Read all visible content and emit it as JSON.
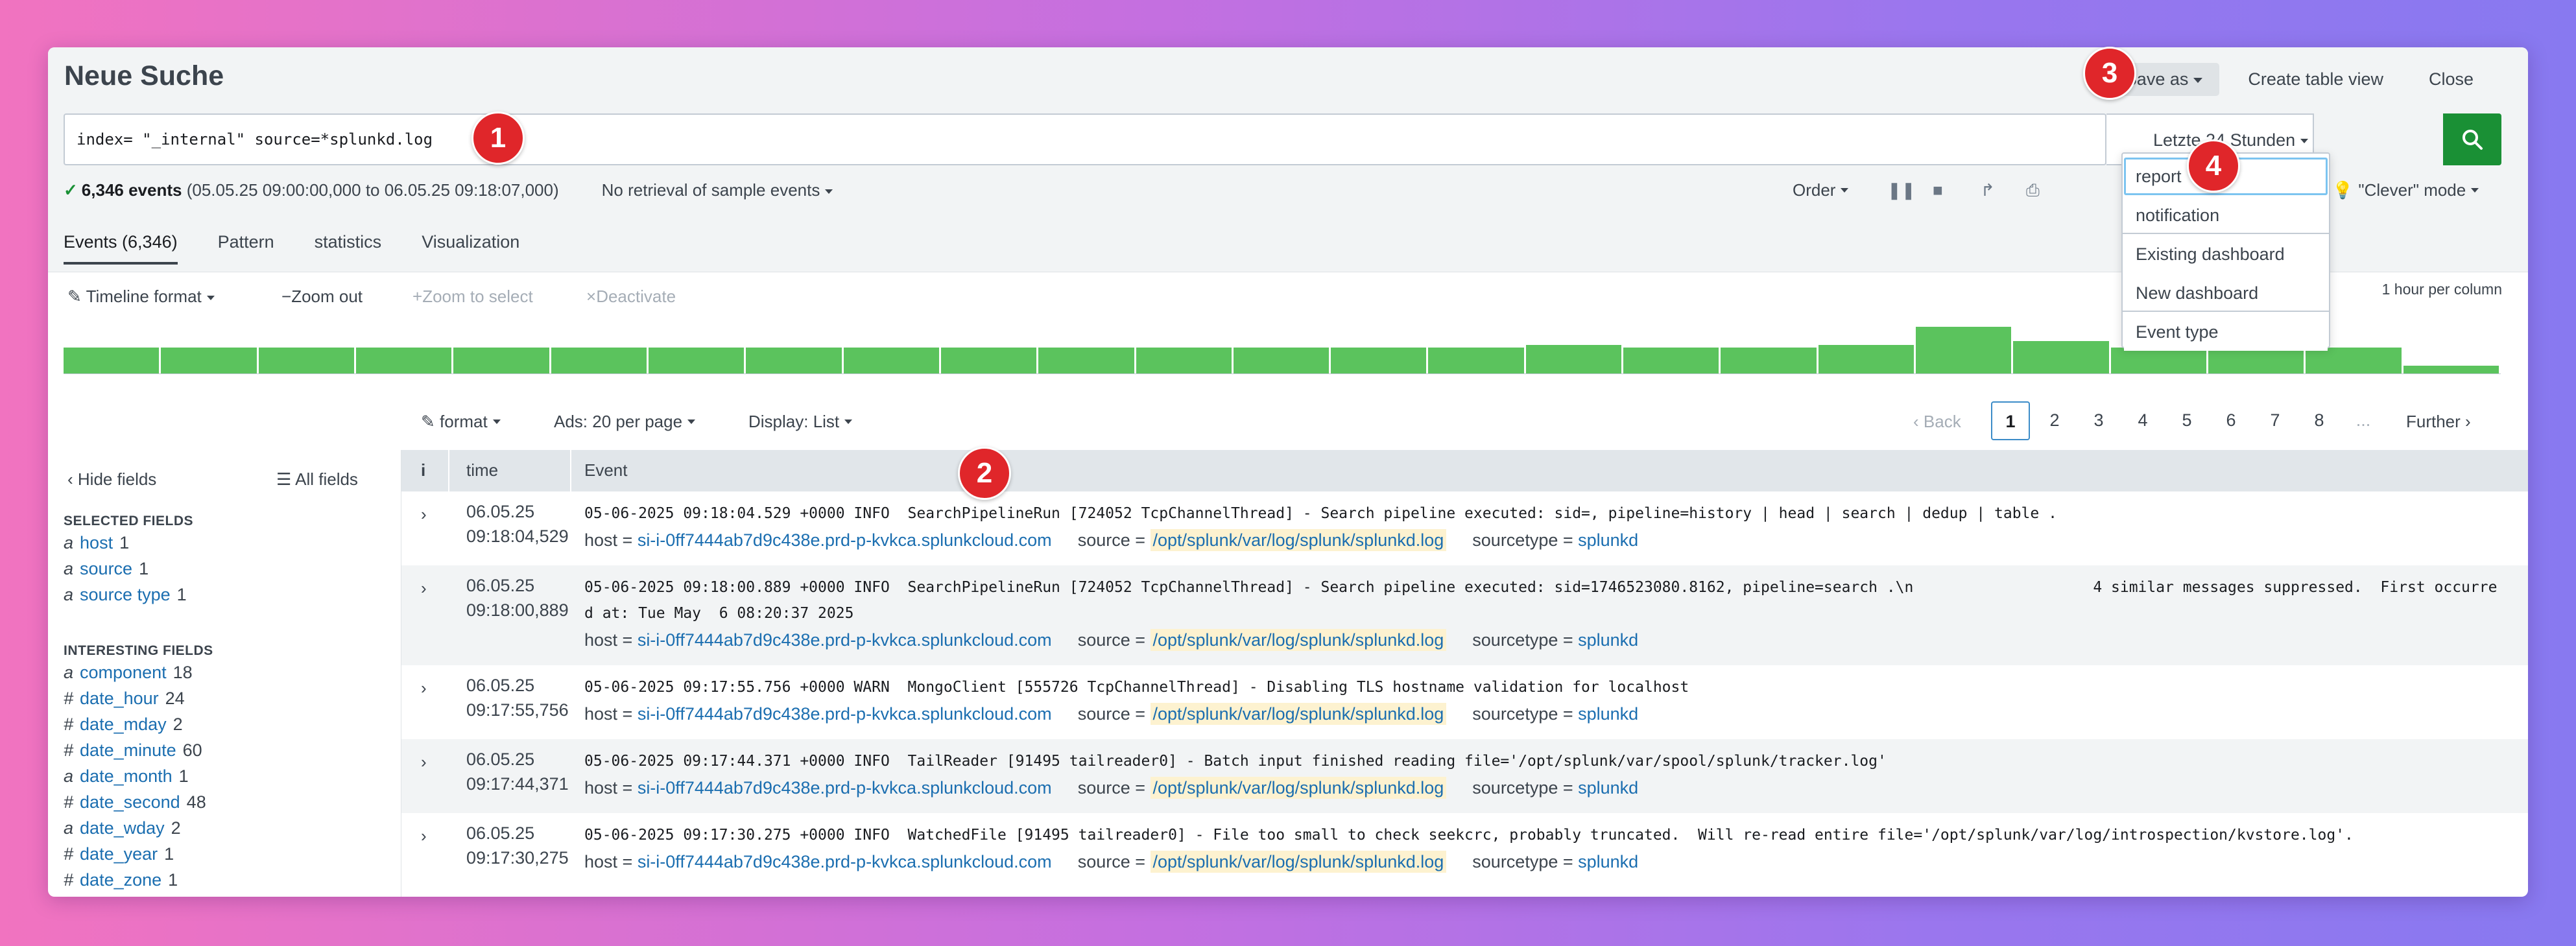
{
  "page": {
    "title": "Neue Suche",
    "actions": {
      "save_as": "Save as",
      "create_table_view": "Create table view",
      "close": "Close"
    }
  },
  "search": {
    "query": "index= \"_internal\" source=*splunkd.log",
    "time_range": "Letzte 24 Stunden"
  },
  "status": {
    "events_label": "6,346 events",
    "range": "(05.05.25 09:00:00,000 to 06.05.25 09:18:07,000)",
    "sampling": "No retrieval of sample events",
    "order": "Order",
    "mode": "\"Clever\" mode"
  },
  "tabs": [
    "Events (6,346)",
    "Pattern",
    "statistics",
    "Visualization"
  ],
  "timeline": {
    "format": "Timeline format",
    "zoom_out": "Zoom out",
    "zoom_select": "Zoom to select",
    "deactivate": "Deactivate",
    "scale": "1 hour per column",
    "bars": [
      0.5,
      0.5,
      0.5,
      0.5,
      0.5,
      0.5,
      0.5,
      0.5,
      0.5,
      0.5,
      0.5,
      0.5,
      0.5,
      0.5,
      0.5,
      0.55,
      0.5,
      0.5,
      0.55,
      0.9,
      0.62,
      0.5,
      0.55,
      0.5,
      0.15
    ]
  },
  "results_bar": {
    "format": "format",
    "per_page": "Ads: 20 per page",
    "display": "Display: List",
    "back": "Back",
    "pages": [
      "1",
      "2",
      "3",
      "4",
      "5",
      "6",
      "7",
      "8"
    ],
    "ellipsis": "...",
    "further": "Further"
  },
  "sidebar": {
    "hide_fields": "Hide fields",
    "all_fields": "All fields",
    "selected_title": "SELECTED FIELDS",
    "selected": [
      {
        "type": "a",
        "name": "host",
        "count": "1"
      },
      {
        "type": "a",
        "name": "source",
        "count": "1"
      },
      {
        "type": "a",
        "name": "source type",
        "count": "1"
      }
    ],
    "interesting_title": "INTERESTING FIELDS",
    "interesting": [
      {
        "type": "a",
        "name": "component",
        "count": "18"
      },
      {
        "type": "#",
        "name": "date_hour",
        "count": "24"
      },
      {
        "type": "#",
        "name": "date_mday",
        "count": "2"
      },
      {
        "type": "#",
        "name": "date_minute",
        "count": "60"
      },
      {
        "type": "a",
        "name": "date_month",
        "count": "1"
      },
      {
        "type": "#",
        "name": "date_second",
        "count": "48"
      },
      {
        "type": "a",
        "name": "date_wday",
        "count": "2"
      },
      {
        "type": "#",
        "name": "date_year",
        "count": "1"
      },
      {
        "type": "#",
        "name": "date_zone",
        "count": "1"
      }
    ]
  },
  "table": {
    "headers": {
      "info": "i",
      "time": "time",
      "event": "Event"
    },
    "meta_labels": {
      "host": "host = ",
      "source": "source = ",
      "sourcetype": "sourcetype = "
    },
    "rows": [
      {
        "date": "06.05.25",
        "time": "09:18:04,529",
        "message": "05-06-2025 09:18:04.529 +0000 INFO  SearchPipelineRun [724052 TcpChannelThread] - Search pipeline executed: sid=, pipeline=history | head | search | dedup | table .",
        "host": "si-i-0ff7444ab7d9c438e.prd-p-kvkca.splunkcloud.com",
        "source": "/opt/splunk/var/log/splunk/splunkd.log",
        "sourcetype": "splunkd"
      },
      {
        "date": "06.05.25",
        "time": "09:18:00,889",
        "message": "05-06-2025 09:18:00.889 +0000 INFO  SearchPipelineRun [724052 TcpChannelThread] - Search pipeline executed: sid=1746523080.8162, pipeline=search .\\n                    4 similar messages suppressed.  First occurred at: Tue May  6 08:20:37 2025",
        "host": "si-i-0ff7444ab7d9c438e.prd-p-kvkca.splunkcloud.com",
        "source": "/opt/splunk/var/log/splunk/splunkd.log",
        "sourcetype": "splunkd"
      },
      {
        "date": "06.05.25",
        "time": "09:17:55,756",
        "message": "05-06-2025 09:17:55.756 +0000 WARN  MongoClient [555726 TcpChannelThread] - Disabling TLS hostname validation for localhost",
        "host": "si-i-0ff7444ab7d9c438e.prd-p-kvkca.splunkcloud.com",
        "source": "/opt/splunk/var/log/splunk/splunkd.log",
        "sourcetype": "splunkd"
      },
      {
        "date": "06.05.25",
        "time": "09:17:44,371",
        "message": "05-06-2025 09:17:44.371 +0000 INFO  TailReader [91495 tailreader0] - Batch input finished reading file='/opt/splunk/var/spool/splunk/tracker.log'",
        "host": "si-i-0ff7444ab7d9c438e.prd-p-kvkca.splunkcloud.com",
        "source": "/opt/splunk/var/log/splunk/splunkd.log",
        "sourcetype": "splunkd"
      },
      {
        "date": "06.05.25",
        "time": "09:17:30,275",
        "message": "05-06-2025 09:17:30.275 +0000 INFO  WatchedFile [91495 tailreader0] - File too small to check seekcrc, probably truncated.  Will re-read entire file='/opt/splunk/var/log/introspection/kvstore.log'.",
        "host": "si-i-0ff7444ab7d9c438e.prd-p-kvkca.splunkcloud.com",
        "source": "/opt/splunk/var/log/splunk/splunkd.log",
        "sourcetype": "splunkd"
      }
    ]
  },
  "save_menu": [
    "report",
    "notification",
    "Existing dashboard",
    "New dashboard",
    "Event type"
  ],
  "annotations": [
    "1",
    "2",
    "3",
    "4"
  ],
  "colors": {
    "accent_green": "#1a9035",
    "link_blue": "#1b6eb0",
    "badge_red": "#e0262a",
    "histogram": "#5bc35d"
  }
}
